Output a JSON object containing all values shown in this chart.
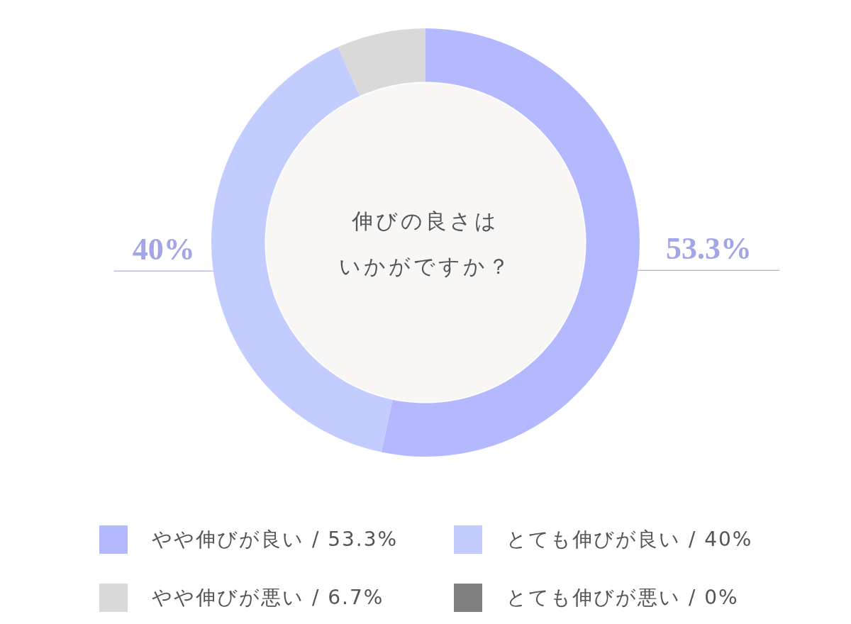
{
  "chart_data": {
    "type": "donut",
    "title": "伸びの良さはいかがですか？",
    "categories": [
      "やや伸びが良い / 53.3%",
      "とても伸びが良い / 40%",
      "やや伸びが悪い / 6.7%",
      "とても伸びが悪い / 0%"
    ],
    "values": [
      53.3,
      40,
      6.7,
      0
    ],
    "colors": [
      "#b3b8ff",
      "#c3ccff",
      "#d9d9d9",
      "#808080"
    ],
    "value_labels": [
      "53.3%",
      "40%",
      null,
      null
    ],
    "legend": "bottom"
  }
}
